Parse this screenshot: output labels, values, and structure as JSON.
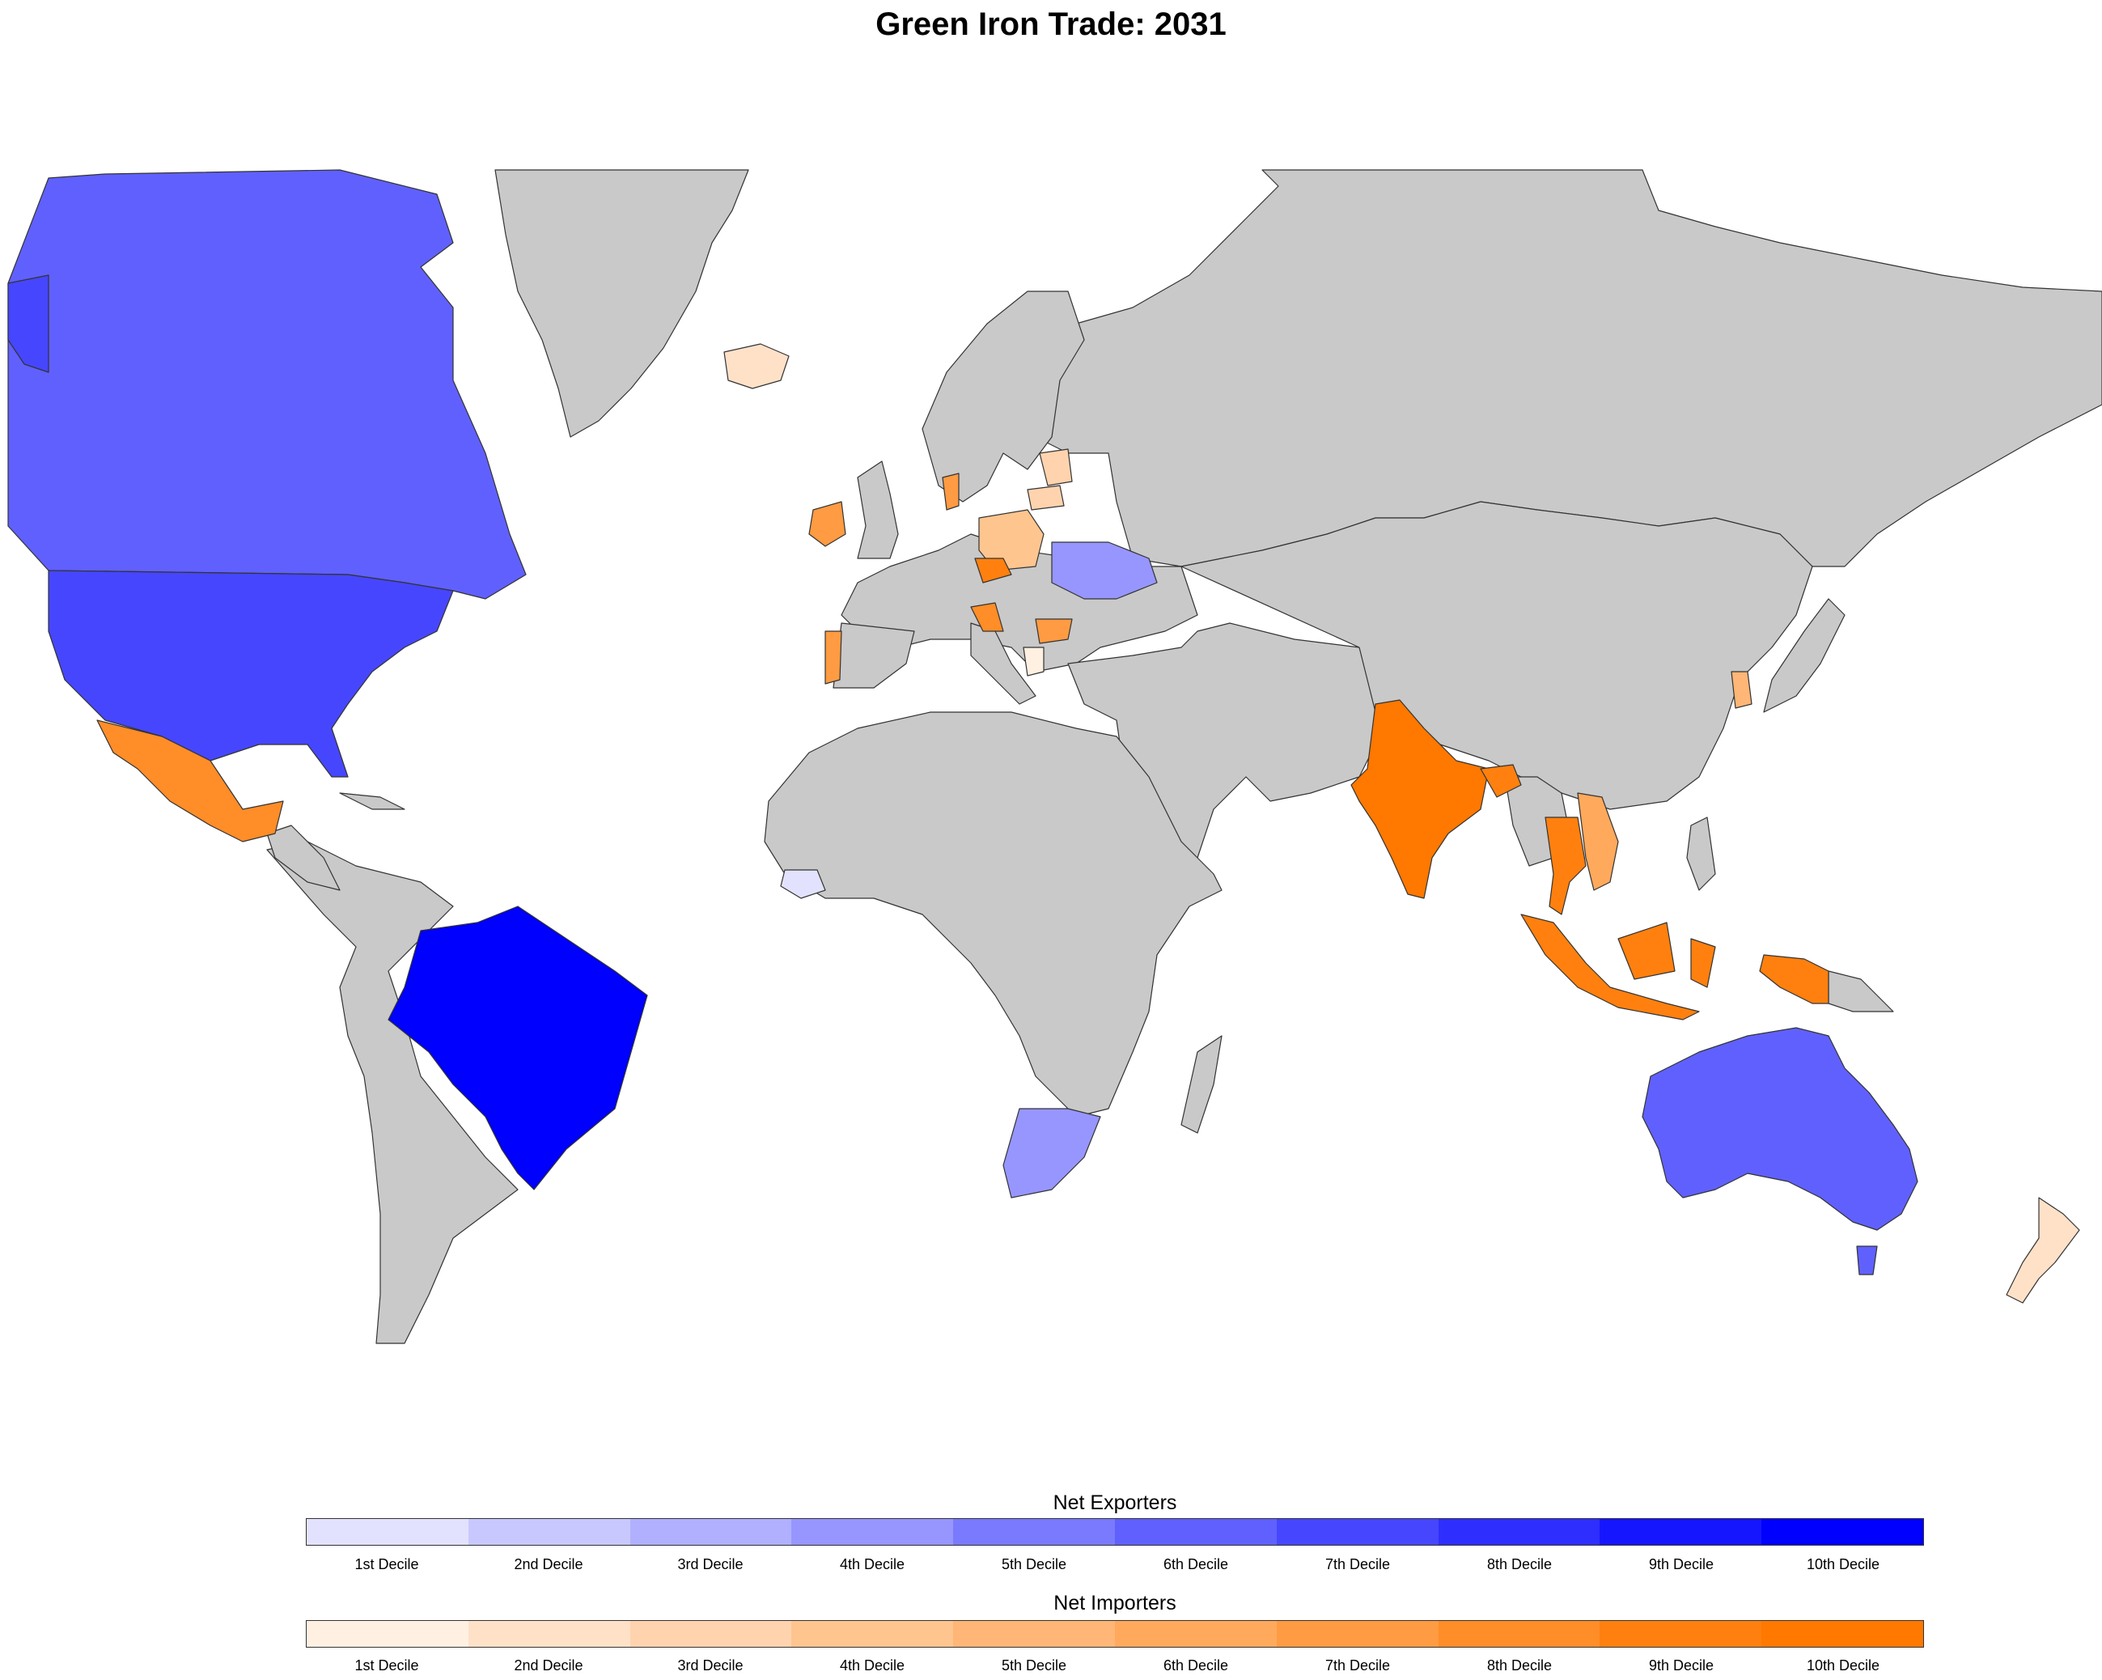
{
  "title": "Green Iron Trade: 2031",
  "colors": {
    "no_data": "#c9c9c9",
    "exporters": [
      "#e2e2fe",
      "#c8c8fe",
      "#b0b0fe",
      "#9696fe",
      "#7a7afe",
      "#6060fe",
      "#4646fe",
      "#2e2efe",
      "#1616fe",
      "#0000fe"
    ],
    "importers": [
      "#fff0e2",
      "#ffe1c8",
      "#ffd3ae",
      "#ffc58f",
      "#ffb676",
      "#ffa95c",
      "#ff9b42",
      "#ff8d28",
      "#ff800e",
      "#ff7800"
    ]
  },
  "legend": {
    "exporters_title": "Net Exporters",
    "importers_title": "Net Importers",
    "deciles": [
      "1st Decile",
      "2nd Decile",
      "3rd Decile",
      "4th Decile",
      "5th Decile",
      "6th Decile",
      "7th Decile",
      "8th Decile",
      "9th Decile",
      "10th Decile"
    ]
  },
  "countries": [
    {
      "id": "canada",
      "group": "exporters",
      "decile": 6
    },
    {
      "id": "usa",
      "group": "exporters",
      "decile": 7
    },
    {
      "id": "alaska",
      "group": "exporters",
      "decile": 7
    },
    {
      "id": "brazil",
      "group": "exporters",
      "decile": 10
    },
    {
      "id": "australia",
      "group": "exporters",
      "decile": 6
    },
    {
      "id": "tasmania",
      "group": "exporters",
      "decile": 6
    },
    {
      "id": "south-africa",
      "group": "exporters",
      "decile": 4
    },
    {
      "id": "ukraine",
      "group": "exporters",
      "decile": 4
    },
    {
      "id": "guinea",
      "group": "exporters",
      "decile": 1
    },
    {
      "id": "mexico",
      "group": "importers",
      "decile": 8
    },
    {
      "id": "india",
      "group": "importers",
      "decile": 10
    },
    {
      "id": "indonesia",
      "group": "importers",
      "decile": 9
    },
    {
      "id": "papua",
      "group": "importers",
      "decile": 9
    },
    {
      "id": "thailand",
      "group": "importers",
      "decile": 9
    },
    {
      "id": "vietnam",
      "group": "importers",
      "decile": 6
    },
    {
      "id": "bangladesh",
      "group": "importers",
      "decile": 9
    },
    {
      "id": "south-korea",
      "group": "importers",
      "decile": 5
    },
    {
      "id": "new-zealand",
      "group": "importers",
      "decile": 2
    },
    {
      "id": "iceland",
      "group": "importers",
      "decile": 2
    },
    {
      "id": "ireland",
      "group": "importers",
      "decile": 7
    },
    {
      "id": "portugal",
      "group": "importers",
      "decile": 7
    },
    {
      "id": "denmark",
      "group": "importers",
      "decile": 7
    },
    {
      "id": "poland",
      "group": "importers",
      "decile": 4
    },
    {
      "id": "czechia",
      "group": "importers",
      "decile": 9
    },
    {
      "id": "lithuania",
      "group": "importers",
      "decile": 3
    },
    {
      "id": "latvia",
      "group": "importers",
      "decile": 3
    },
    {
      "id": "bulgaria",
      "group": "importers",
      "decile": 7
    },
    {
      "id": "croatia",
      "group": "importers",
      "decile": 8
    },
    {
      "id": "greece",
      "group": "importers",
      "decile": 1
    }
  ]
}
